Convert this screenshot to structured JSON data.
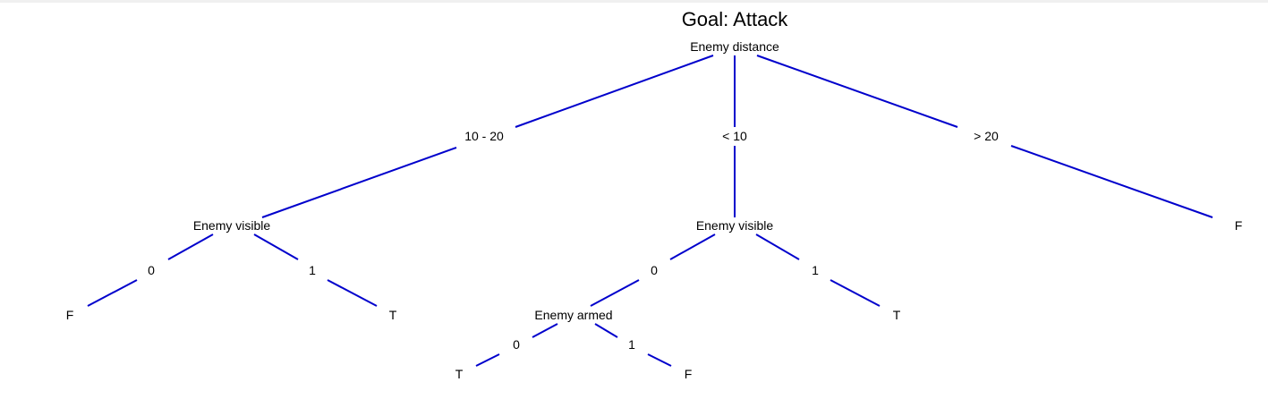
{
  "title": "Goal: Attack",
  "colors": {
    "edge": "#0000cc",
    "text": "#000000",
    "background": "#ffffff"
  },
  "nodes": {
    "root": "Enemy distance",
    "mid_distance_visible": "Enemy visible",
    "near_visible": "Enemy visible",
    "near_armed": "Enemy armed",
    "leaf_far": "F",
    "leaf_mid_0": "F",
    "leaf_mid_1": "T",
    "leaf_near_1": "T",
    "leaf_armed_0": "T",
    "leaf_armed_1": "F"
  },
  "edges": {
    "root_to_mid": "10 - 20",
    "root_to_near": "< 10",
    "root_to_far": "> 20",
    "mid_0": "0",
    "mid_1": "1",
    "near_0": "0",
    "near_1": "1",
    "armed_0": "0",
    "armed_1": "1"
  }
}
